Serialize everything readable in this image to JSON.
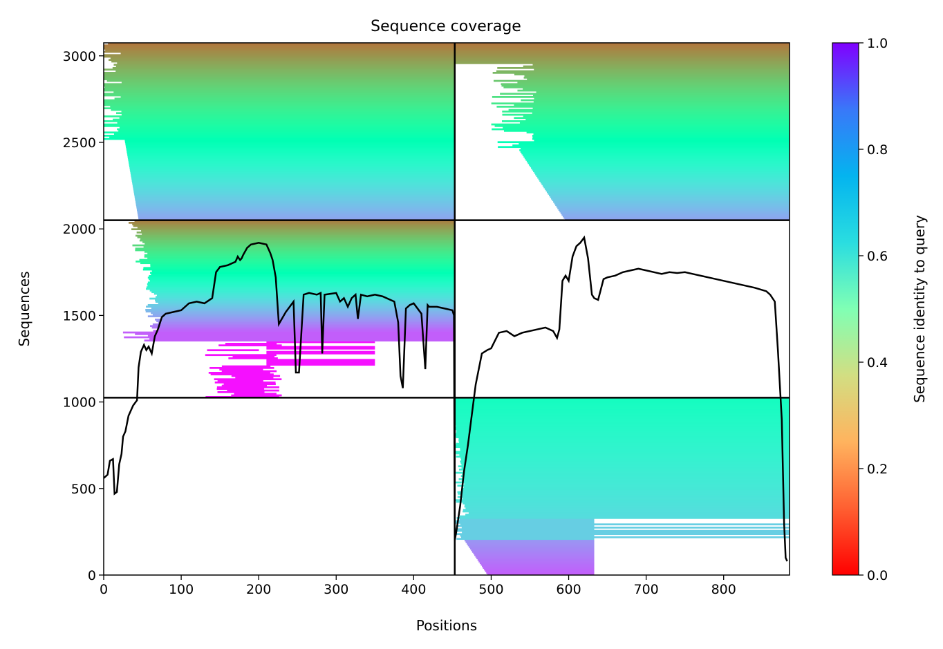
{
  "chart_data": {
    "type": "heatmap",
    "title": "Sequence coverage",
    "xlabel": "Positions",
    "ylabel": "Sequences",
    "xlim": [
      0,
      885
    ],
    "ylim": [
      0,
      3075
    ],
    "xticks": [
      0,
      100,
      200,
      300,
      400,
      500,
      600,
      700,
      800
    ],
    "yticks": [
      0,
      500,
      1000,
      1500,
      2000,
      2500,
      3000
    ],
    "colorbar": {
      "label": "Sequence identity to query",
      "range": [
        0.0,
        1.0
      ],
      "ticks": [
        "0.0",
        "0.2",
        "0.4",
        "0.6",
        "0.8",
        "1.0"
      ],
      "colormap": "rainbow"
    },
    "block_dividers": {
      "x": [
        453
      ],
      "y": [
        1025,
        2050
      ]
    },
    "coverage_line": {
      "x": [
        0,
        5,
        8,
        12,
        14,
        17,
        20,
        23,
        25,
        28,
        32,
        38,
        43,
        45,
        48,
        52,
        55,
        58,
        62,
        66,
        70,
        75,
        80,
        90,
        100,
        110,
        120,
        130,
        140,
        145,
        150,
        160,
        170,
        173,
        176,
        178,
        180,
        185,
        190,
        200,
        210,
        215,
        218,
        222,
        226,
        235,
        245,
        248,
        252,
        258,
        265,
        275,
        280,
        282,
        285,
        300,
        305,
        310,
        315,
        320,
        325,
        328,
        332,
        340,
        350,
        360,
        370,
        375,
        380,
        383,
        386,
        390,
        395,
        400,
        410,
        415,
        418,
        420,
        430,
        440,
        450,
        452,
        453,
        455,
        460,
        465,
        470,
        480,
        488,
        495,
        500,
        510,
        520,
        530,
        540,
        550,
        560,
        570,
        580,
        585,
        588,
        592,
        596,
        600,
        605,
        610,
        615,
        620,
        625,
        630,
        633,
        638,
        645,
        650,
        660,
        670,
        680,
        690,
        700,
        710,
        720,
        730,
        740,
        750,
        760,
        780,
        800,
        820,
        840,
        855,
        860,
        866,
        870,
        875,
        878,
        880,
        882,
        884
      ],
      "y": [
        560,
        580,
        660,
        670,
        470,
        480,
        640,
        700,
        800,
        830,
        920,
        980,
        1010,
        1200,
        1290,
        1330,
        1300,
        1320,
        1280,
        1380,
        1420,
        1490,
        1510,
        1520,
        1530,
        1570,
        1580,
        1570,
        1600,
        1750,
        1780,
        1790,
        1810,
        1840,
        1820,
        1830,
        1850,
        1890,
        1910,
        1920,
        1910,
        1860,
        1820,
        1720,
        1450,
        1520,
        1580,
        1170,
        1170,
        1620,
        1630,
        1620,
        1630,
        1280,
        1620,
        1630,
        1580,
        1600,
        1550,
        1600,
        1620,
        1480,
        1620,
        1610,
        1620,
        1610,
        1590,
        1580,
        1460,
        1150,
        1080,
        1540,
        1560,
        1570,
        1510,
        1190,
        1560,
        1550,
        1550,
        1540,
        1530,
        1500,
        200,
        250,
        400,
        600,
        750,
        1100,
        1280,
        1300,
        1310,
        1400,
        1410,
        1380,
        1400,
        1410,
        1420,
        1430,
        1410,
        1370,
        1420,
        1700,
        1730,
        1700,
        1840,
        1900,
        1920,
        1950,
        1830,
        1620,
        1600,
        1590,
        1710,
        1720,
        1730,
        1750,
        1760,
        1770,
        1760,
        1750,
        1740,
        1750,
        1745,
        1750,
        1740,
        1720,
        1700,
        1680,
        1660,
        1640,
        1620,
        1580,
        1300,
        900,
        300,
        100,
        80
      ]
    }
  }
}
